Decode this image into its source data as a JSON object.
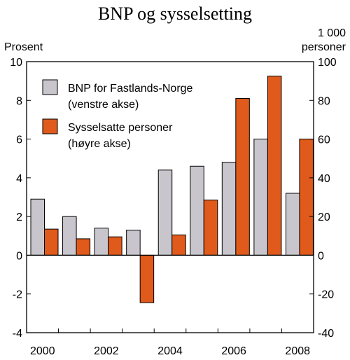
{
  "chart_data": {
    "type": "bar",
    "title": "BNP og sysselsetting",
    "y_left_unit": "Prosent",
    "y_right_unit_line1": "1 000",
    "y_right_unit_line2": "personer",
    "categories": [
      "2000",
      "2001",
      "2002",
      "2003",
      "2004",
      "2005",
      "2006",
      "2007",
      "2008"
    ],
    "x_tick_labels": [
      "2000",
      "",
      "2002",
      "",
      "2004",
      "",
      "2006",
      "",
      "2008"
    ],
    "y_left_lim": [
      -4,
      10
    ],
    "y_left_ticks": [
      "10",
      "8",
      "6",
      "4",
      "2",
      "0",
      "-2",
      "-4"
    ],
    "y_right_lim": [
      -40,
      100
    ],
    "y_right_ticks": [
      "100",
      "80",
      "60",
      "40",
      "20",
      "0",
      "-20",
      "-40"
    ],
    "grid": false,
    "legend_position": "top-left",
    "series": [
      {
        "name_line1": "BNP for Fastlands-Norge",
        "name_line2": "(venstre akse)",
        "axis": "left",
        "color": "#c8c6cc",
        "values": [
          2.9,
          2.0,
          1.4,
          1.3,
          4.4,
          4.6,
          4.8,
          6.0,
          3.2
        ]
      },
      {
        "name_line1": "Sysselsatte personer",
        "name_line2": "(høyre akse)",
        "axis": "right",
        "color": "#e05a1b",
        "values": [
          13.5,
          8.5,
          9.5,
          -24.5,
          10.5,
          28.5,
          81,
          92.5,
          60
        ]
      }
    ]
  }
}
